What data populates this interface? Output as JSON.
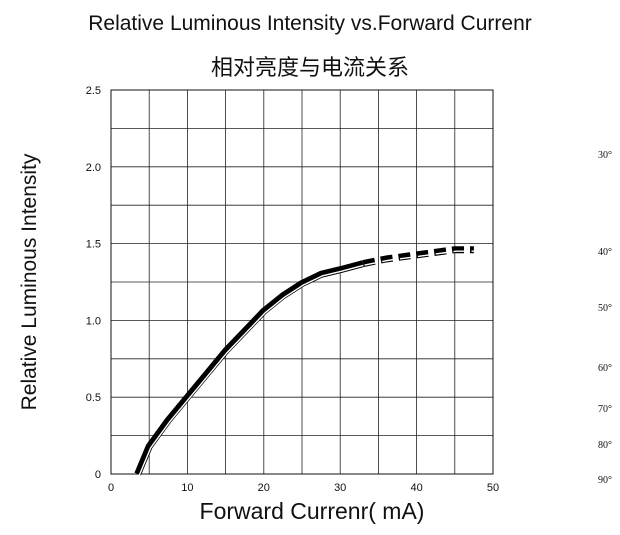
{
  "chart_data": {
    "type": "line",
    "title": "Relative Luminous Intensity vs.Forward Currenr",
    "subtitle": "相对亮度与电流关系",
    "xlabel": "Forward Currenr(  mA)",
    "ylabel": "Relative Luminous Intensity",
    "xlim": [
      0,
      50
    ],
    "ylim": [
      0,
      2.5
    ],
    "x_ticks": [
      "0",
      "10",
      "20",
      "30",
      "40",
      "50"
    ],
    "y_ticks": [
      "0",
      "0.5",
      "1.0",
      "1.5",
      "2.0",
      "2.5"
    ],
    "grid": true,
    "series": [
      {
        "style": "solid",
        "x": [
          3.5,
          5,
          7.5,
          10,
          12.5,
          15,
          17.5,
          20,
          22.5,
          25,
          27.5,
          30,
          33
        ],
        "y": [
          0.0,
          0.18,
          0.35,
          0.5,
          0.65,
          0.8,
          0.93,
          1.06,
          1.16,
          1.24,
          1.3,
          1.33,
          1.37
        ]
      },
      {
        "style": "dashed",
        "x": [
          33,
          36,
          39,
          42,
          45,
          47.5
        ],
        "y": [
          1.37,
          1.4,
          1.42,
          1.44,
          1.46,
          1.46
        ]
      }
    ],
    "side_labels": [
      "30°",
      "40°",
      "50°",
      "60°",
      "70°",
      "80°",
      "90°"
    ]
  }
}
